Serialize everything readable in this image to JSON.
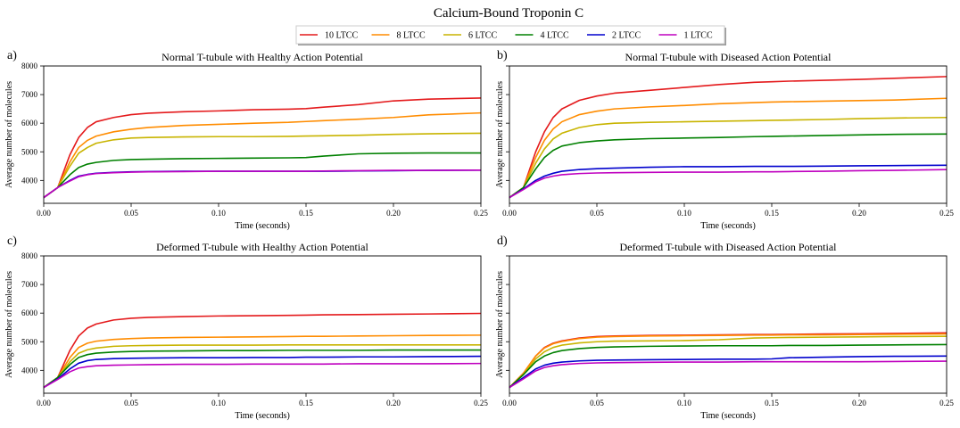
{
  "figure": {
    "title": "Calcium-Bound Troponin C"
  },
  "legend": {
    "placement": "top-center",
    "entries": [
      {
        "name": "10 LTCC",
        "color": "#e41a1c"
      },
      {
        "name": "8 LTCC",
        "color": "#ff8c00"
      },
      {
        "name": "6 LTCC",
        "color": "#c8b400"
      },
      {
        "name": "4 LTCC",
        "color": "#008000"
      },
      {
        "name": "2 LTCC",
        "color": "#0000cd"
      },
      {
        "name": "1 LTCC",
        "color": "#bf00bf"
      }
    ]
  },
  "chart_data": [
    {
      "type": "line",
      "panel_label": "a)",
      "title": "Normal T-tubule with Healthy Action Potential",
      "xlabel": "Time (seconds)",
      "ylabel": "Average number of molecules",
      "xlim": [
        0,
        0.25
      ],
      "ylim": [
        3200,
        8000
      ],
      "xticks": [
        0,
        0.05,
        0.1,
        0.15,
        0.2,
        0.25
      ],
      "xtick_labels": [
        "0.00",
        "0.05",
        "0.10",
        "0.15",
        "0.20",
        "0.25"
      ],
      "yticks": [
        4000,
        5000,
        6000,
        7000,
        8000
      ],
      "ytick_labels": [
        "4000",
        "5000",
        "6000",
        "7000",
        "8000"
      ],
      "show_ytick_labels": true,
      "grid": false,
      "x": [
        0,
        0.008,
        0.015,
        0.02,
        0.025,
        0.03,
        0.04,
        0.05,
        0.06,
        0.08,
        0.1,
        0.12,
        0.14,
        0.15,
        0.16,
        0.18,
        0.2,
        0.22,
        0.25
      ],
      "series": [
        {
          "name": "10 LTCC",
          "values": [
            3400,
            3750,
            4900,
            5500,
            5850,
            6050,
            6200,
            6300,
            6350,
            6400,
            6430,
            6470,
            6490,
            6510,
            6560,
            6650,
            6780,
            6840,
            6880
          ]
        },
        {
          "name": "8 LTCC",
          "values": [
            3400,
            3750,
            4650,
            5150,
            5400,
            5550,
            5700,
            5790,
            5850,
            5920,
            5960,
            6000,
            6030,
            6060,
            6090,
            6140,
            6200,
            6290,
            6360
          ]
        },
        {
          "name": "6 LTCC",
          "values": [
            3400,
            3750,
            4500,
            4950,
            5150,
            5300,
            5420,
            5480,
            5500,
            5520,
            5530,
            5530,
            5540,
            5550,
            5560,
            5580,
            5610,
            5630,
            5650
          ]
        },
        {
          "name": "4 LTCC",
          "values": [
            3400,
            3750,
            4200,
            4450,
            4570,
            4630,
            4700,
            4730,
            4740,
            4760,
            4770,
            4780,
            4790,
            4800,
            4850,
            4930,
            4950,
            4960,
            4960
          ]
        },
        {
          "name": "2 LTCC",
          "values": [
            3400,
            3750,
            4000,
            4150,
            4210,
            4250,
            4280,
            4300,
            4310,
            4320,
            4320,
            4320,
            4320,
            4320,
            4320,
            4330,
            4340,
            4350,
            4360
          ]
        },
        {
          "name": "1 LTCC",
          "values": [
            3400,
            3750,
            3980,
            4130,
            4200,
            4240,
            4270,
            4290,
            4300,
            4310,
            4320,
            4320,
            4320,
            4320,
            4330,
            4340,
            4350,
            4350,
            4360
          ]
        }
      ]
    },
    {
      "type": "line",
      "panel_label": "b)",
      "title": "Normal T-tubule with Diseased Action Potential",
      "xlabel": "Time (seconds)",
      "ylabel": "Average number of molecules",
      "xlim": [
        0,
        0.25
      ],
      "ylim": [
        3200,
        8000
      ],
      "xticks": [
        0,
        0.05,
        0.1,
        0.15,
        0.2,
        0.25
      ],
      "xtick_labels": [
        "0.00",
        "0.05",
        "0.10",
        "0.15",
        "0.20",
        "0.25"
      ],
      "yticks": [
        4000,
        5000,
        6000,
        7000,
        8000
      ],
      "ytick_labels": [
        "4000",
        "5000",
        "6000",
        "7000",
        "8000"
      ],
      "show_ytick_labels": false,
      "grid": false,
      "x": [
        0,
        0.008,
        0.015,
        0.02,
        0.025,
        0.03,
        0.04,
        0.05,
        0.06,
        0.08,
        0.1,
        0.12,
        0.14,
        0.15,
        0.16,
        0.18,
        0.2,
        0.22,
        0.25
      ],
      "series": [
        {
          "name": "10 LTCC",
          "values": [
            3400,
            3750,
            5000,
            5700,
            6200,
            6500,
            6800,
            6950,
            7050,
            7150,
            7250,
            7350,
            7430,
            7450,
            7470,
            7500,
            7530,
            7570,
            7630
          ]
        },
        {
          "name": "8 LTCC",
          "values": [
            3400,
            3750,
            4800,
            5400,
            5800,
            6050,
            6300,
            6420,
            6500,
            6570,
            6620,
            6680,
            6720,
            6740,
            6750,
            6770,
            6790,
            6810,
            6870
          ]
        },
        {
          "name": "6 LTCC",
          "values": [
            3400,
            3750,
            4600,
            5100,
            5450,
            5650,
            5850,
            5950,
            6000,
            6030,
            6050,
            6070,
            6090,
            6100,
            6110,
            6130,
            6160,
            6180,
            6200
          ]
        },
        {
          "name": "4 LTCC",
          "values": [
            3400,
            3750,
            4400,
            4800,
            5050,
            5200,
            5320,
            5380,
            5420,
            5460,
            5480,
            5500,
            5530,
            5540,
            5550,
            5570,
            5590,
            5610,
            5620
          ]
        },
        {
          "name": "2 LTCC",
          "values": [
            3400,
            3700,
            4000,
            4150,
            4250,
            4320,
            4380,
            4410,
            4430,
            4460,
            4480,
            4480,
            4490,
            4490,
            4490,
            4500,
            4510,
            4520,
            4530
          ]
        },
        {
          "name": "1 LTCC",
          "values": [
            3400,
            3680,
            3950,
            4080,
            4150,
            4200,
            4240,
            4260,
            4270,
            4280,
            4290,
            4290,
            4300,
            4300,
            4310,
            4320,
            4340,
            4350,
            4380
          ]
        }
      ]
    },
    {
      "type": "line",
      "panel_label": "c)",
      "title": "Deformed T-tubule with Healthy Action Potential",
      "xlabel": "Time (seconds)",
      "ylabel": "Average number of molecules",
      "xlim": [
        0,
        0.25
      ],
      "ylim": [
        3200,
        8000
      ],
      "xticks": [
        0,
        0.05,
        0.1,
        0.15,
        0.2,
        0.25
      ],
      "xtick_labels": [
        "0.00",
        "0.05",
        "0.10",
        "0.15",
        "0.20",
        "0.25"
      ],
      "yticks": [
        4000,
        5000,
        6000,
        7000,
        8000
      ],
      "ytick_labels": [
        "4000",
        "5000",
        "6000",
        "7000",
        "8000"
      ],
      "show_ytick_labels": true,
      "grid": false,
      "x": [
        0,
        0.008,
        0.015,
        0.02,
        0.025,
        0.03,
        0.04,
        0.05,
        0.06,
        0.08,
        0.1,
        0.12,
        0.14,
        0.15,
        0.16,
        0.18,
        0.2,
        0.22,
        0.25
      ],
      "series": [
        {
          "name": "10 LTCC",
          "values": [
            3400,
            3750,
            4700,
            5200,
            5480,
            5620,
            5760,
            5820,
            5850,
            5880,
            5900,
            5910,
            5920,
            5930,
            5940,
            5950,
            5960,
            5970,
            5990
          ]
        },
        {
          "name": "8 LTCC",
          "values": [
            3400,
            3750,
            4450,
            4800,
            4950,
            5020,
            5080,
            5110,
            5130,
            5150,
            5160,
            5170,
            5180,
            5190,
            5190,
            5200,
            5210,
            5220,
            5230
          ]
        },
        {
          "name": "6 LTCC",
          "values": [
            3400,
            3750,
            4300,
            4600,
            4720,
            4780,
            4840,
            4860,
            4870,
            4880,
            4880,
            4880,
            4890,
            4890,
            4890,
            4890,
            4890,
            4890,
            4890
          ]
        },
        {
          "name": "4 LTCC",
          "values": [
            3400,
            3750,
            4200,
            4450,
            4550,
            4600,
            4640,
            4660,
            4670,
            4680,
            4690,
            4690,
            4700,
            4700,
            4700,
            4700,
            4710,
            4710,
            4710
          ]
        },
        {
          "name": "2 LTCC",
          "values": [
            3400,
            3700,
            4050,
            4250,
            4340,
            4380,
            4410,
            4420,
            4430,
            4440,
            4440,
            4450,
            4450,
            4460,
            4460,
            4470,
            4470,
            4480,
            4490
          ]
        },
        {
          "name": "1 LTCC",
          "values": [
            3400,
            3680,
            3950,
            4080,
            4130,
            4160,
            4180,
            4190,
            4200,
            4210,
            4210,
            4220,
            4220,
            4220,
            4220,
            4230,
            4230,
            4230,
            4240
          ]
        }
      ]
    },
    {
      "type": "line",
      "panel_label": "d)",
      "title": "Deformed T-tubule with Diseased Action Potential",
      "xlabel": "Time (seconds)",
      "ylabel": "Average number of molecules",
      "xlim": [
        0,
        0.25
      ],
      "ylim": [
        3200,
        8000
      ],
      "xticks": [
        0,
        0.05,
        0.1,
        0.15,
        0.2,
        0.25
      ],
      "xtick_labels": [
        "0.00",
        "0.05",
        "0.10",
        "0.15",
        "0.20",
        "0.25"
      ],
      "yticks": [
        4000,
        5000,
        6000,
        7000,
        8000
      ],
      "ytick_labels": [
        "4000",
        "5000",
        "6000",
        "7000",
        "8000"
      ],
      "show_ytick_labels": false,
      "grid": false,
      "x": [
        0,
        0.008,
        0.015,
        0.02,
        0.025,
        0.03,
        0.04,
        0.05,
        0.06,
        0.08,
        0.1,
        0.12,
        0.14,
        0.15,
        0.16,
        0.18,
        0.2,
        0.22,
        0.25
      ],
      "series": [
        {
          "name": "10 LTCC",
          "values": [
            3400,
            3900,
            4500,
            4800,
            4950,
            5030,
            5130,
            5180,
            5200,
            5220,
            5230,
            5240,
            5250,
            5250,
            5260,
            5270,
            5280,
            5290,
            5310
          ]
        },
        {
          "name": "8 LTCC",
          "values": [
            3400,
            3900,
            4500,
            4780,
            4930,
            5010,
            5110,
            5160,
            5180,
            5200,
            5210,
            5220,
            5230,
            5230,
            5240,
            5240,
            5250,
            5260,
            5270
          ]
        },
        {
          "name": "6 LTCC",
          "values": [
            3400,
            3850,
            4400,
            4650,
            4800,
            4880,
            4960,
            5000,
            5020,
            5030,
            5040,
            5070,
            5130,
            5140,
            5150,
            5160,
            5170,
            5180,
            5190
          ]
        },
        {
          "name": "4 LTCC",
          "values": [
            3400,
            3850,
            4300,
            4500,
            4620,
            4690,
            4760,
            4800,
            4820,
            4840,
            4850,
            4860,
            4860,
            4860,
            4870,
            4870,
            4880,
            4890,
            4900
          ]
        },
        {
          "name": "2 LTCC",
          "values": [
            3400,
            3750,
            4050,
            4180,
            4250,
            4290,
            4330,
            4350,
            4360,
            4370,
            4380,
            4390,
            4390,
            4400,
            4440,
            4460,
            4480,
            4490,
            4500
          ]
        },
        {
          "name": "1 LTCC",
          "values": [
            3400,
            3700,
            3980,
            4100,
            4160,
            4200,
            4240,
            4260,
            4270,
            4280,
            4290,
            4290,
            4300,
            4300,
            4300,
            4300,
            4300,
            4310,
            4320
          ]
        }
      ]
    }
  ]
}
